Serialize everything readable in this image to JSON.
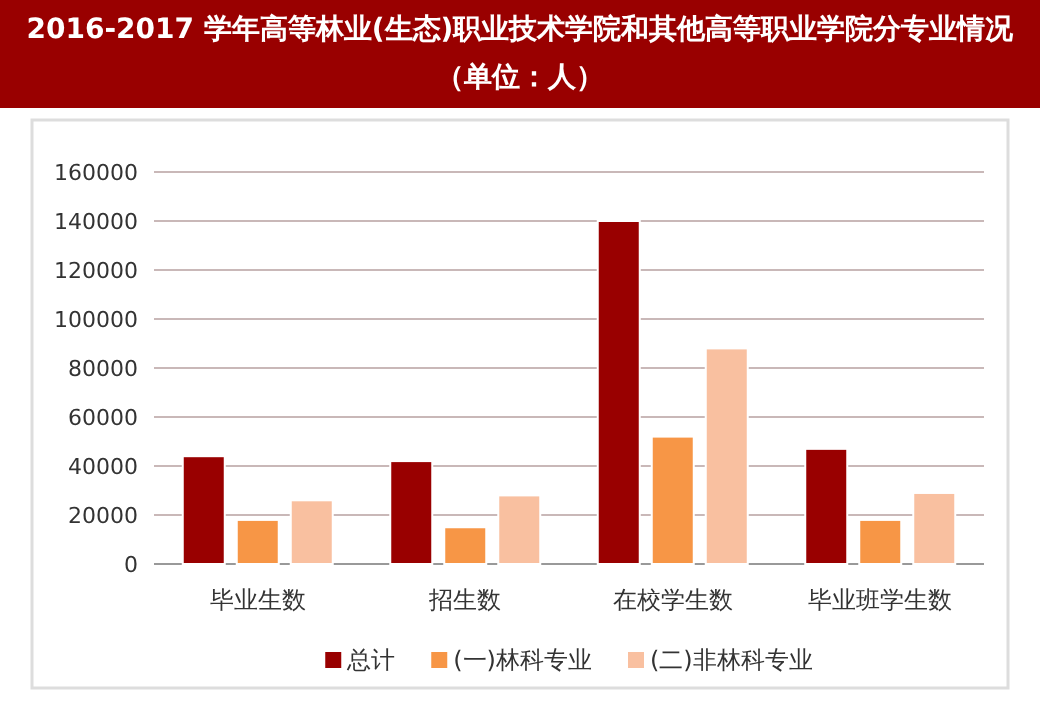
{
  "chart_data": {
    "type": "bar",
    "title": "2016-2017 学年高等林业(生态)职业技术学院和其他高等职业学院分专业情况（单位：人）",
    "categories": [
      "毕业生数",
      "招生数",
      "在校学生数",
      "毕业班学生数"
    ],
    "series": [
      {
        "name": "总计",
        "color": "#990000",
        "values": [
          44000,
          42000,
          140000,
          47000
        ]
      },
      {
        "name": "(一)林科专业",
        "color": "#f79646",
        "values": [
          18000,
          15000,
          52000,
          18000
        ]
      },
      {
        "name": "(二)非林科专业",
        "color": "#f9c0a0",
        "values": [
          26000,
          28000,
          88000,
          29000
        ]
      }
    ],
    "ylim": [
      0,
      160000
    ],
    "yticks": [
      0,
      20000,
      40000,
      60000,
      80000,
      100000,
      120000,
      140000,
      160000
    ],
    "grid": "y",
    "legend": "bottom"
  }
}
